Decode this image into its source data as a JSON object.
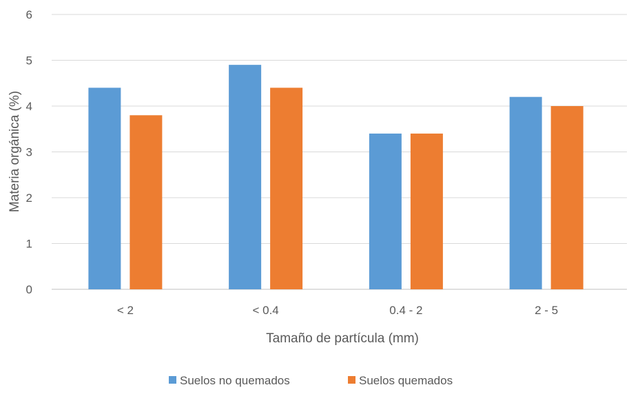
{
  "chart_data": {
    "type": "bar",
    "title": "",
    "xlabel": "Tamaño de partícula (mm)",
    "ylabel": "Materia orgánica (%)",
    "ylim": [
      0,
      6
    ],
    "yticks": [
      0,
      1,
      2,
      3,
      4,
      5,
      6
    ],
    "grid": true,
    "legend_position": "bottom",
    "categories": [
      "< 2",
      "< 0.4",
      "0.4 - 2",
      "2 - 5"
    ],
    "series": [
      {
        "name": "Suelos no quemados",
        "color": "#5b9bd5",
        "values": [
          4.4,
          4.9,
          3.4,
          4.2
        ]
      },
      {
        "name": "Suelos quemados",
        "color": "#ed7d31",
        "values": [
          3.8,
          4.4,
          3.4,
          4.0
        ]
      }
    ]
  }
}
